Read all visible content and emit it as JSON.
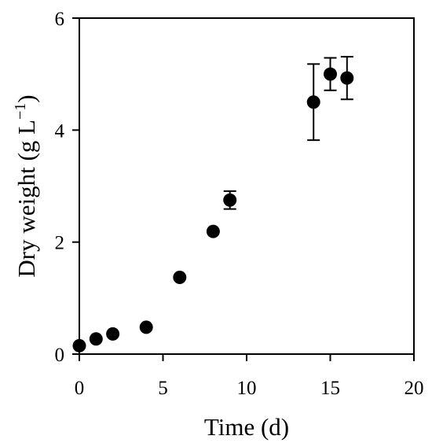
{
  "chart_data": {
    "type": "scatter",
    "title": "",
    "xlabel": "Time (d)",
    "ylabel_main": "Dry weight (g L",
    "ylabel_sup": "−1",
    "ylabel_close": ")",
    "xlim": [
      0,
      20
    ],
    "ylim": [
      0,
      6
    ],
    "xticks": [
      0,
      5,
      10,
      15,
      20
    ],
    "yticks": [
      0,
      2,
      4,
      6
    ],
    "grid": false,
    "series": [
      {
        "points": [
          {
            "x": 0,
            "y": 0.15,
            "err": 0
          },
          {
            "x": 1,
            "y": 0.27,
            "err": 0
          },
          {
            "x": 2,
            "y": 0.36,
            "err": 0
          },
          {
            "x": 4,
            "y": 0.48,
            "err": 0
          },
          {
            "x": 6,
            "y": 1.37,
            "err": 0
          },
          {
            "x": 8,
            "y": 2.19,
            "err": 0
          },
          {
            "x": 9,
            "y": 2.75,
            "err": 0.16
          },
          {
            "x": 14,
            "y": 4.5,
            "err": 0.68
          },
          {
            "x": 15,
            "y": 5.0,
            "err": 0.29
          },
          {
            "x": 16,
            "y": 4.93,
            "err": 0.38
          }
        ]
      }
    ]
  }
}
